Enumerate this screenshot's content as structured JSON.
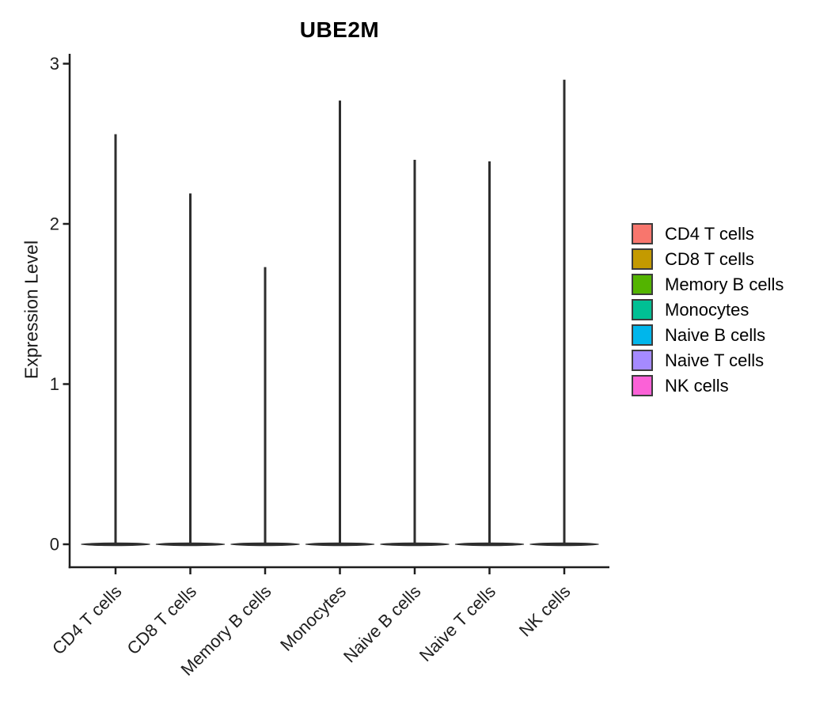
{
  "title": "UBE2M",
  "y_axis": {
    "label": "Expression Level"
  },
  "legend": {
    "position": "right",
    "entries": [
      {
        "label": "CD4 T cells",
        "color": "#F8766D"
      },
      {
        "label": "CD8 T cells",
        "color": "#C49A00"
      },
      {
        "label": "Memory B cells",
        "color": "#53B400"
      },
      {
        "label": "Monocytes",
        "color": "#00C094"
      },
      {
        "label": "Naive B cells",
        "color": "#00B6EB"
      },
      {
        "label": "Naive T cells",
        "color": "#A58AFF"
      },
      {
        "label": "NK cells",
        "color": "#FB61D7"
      }
    ]
  },
  "chart_data": {
    "type": "violin",
    "title": "UBE2M",
    "xlabel": "",
    "ylabel": "Expression Level",
    "ylim": [
      0,
      3
    ],
    "y_ticks": [
      0,
      1,
      2,
      3
    ],
    "grid": false,
    "legend_position": "right",
    "categories": [
      "CD4 T cells",
      "CD8 T cells",
      "Memory B cells",
      "Monocytes",
      "Naive B cells",
      "Naive T cells",
      "NK cells"
    ],
    "series": [
      {
        "name": "CD4 T cells",
        "color": "#F8766D",
        "max_expression": 2.56,
        "density_concentrated_at": 0
      },
      {
        "name": "CD8 T cells",
        "color": "#C49A00",
        "max_expression": 2.19,
        "density_concentrated_at": 0
      },
      {
        "name": "Memory B cells",
        "color": "#53B400",
        "max_expression": 1.73,
        "density_concentrated_at": 0
      },
      {
        "name": "Monocytes",
        "color": "#00C094",
        "max_expression": 2.77,
        "density_concentrated_at": 0
      },
      {
        "name": "Naive B cells",
        "color": "#00B6EB",
        "max_expression": 2.4,
        "density_concentrated_at": 0
      },
      {
        "name": "Naive T cells",
        "color": "#A58AFF",
        "max_expression": 2.39,
        "density_concentrated_at": 0
      },
      {
        "name": "NK cells",
        "color": "#FB61D7",
        "max_expression": 2.9,
        "density_concentrated_at": 0
      }
    ],
    "violin_shape_note": "flat wide mass at 0 with thin vertical spike to max"
  }
}
